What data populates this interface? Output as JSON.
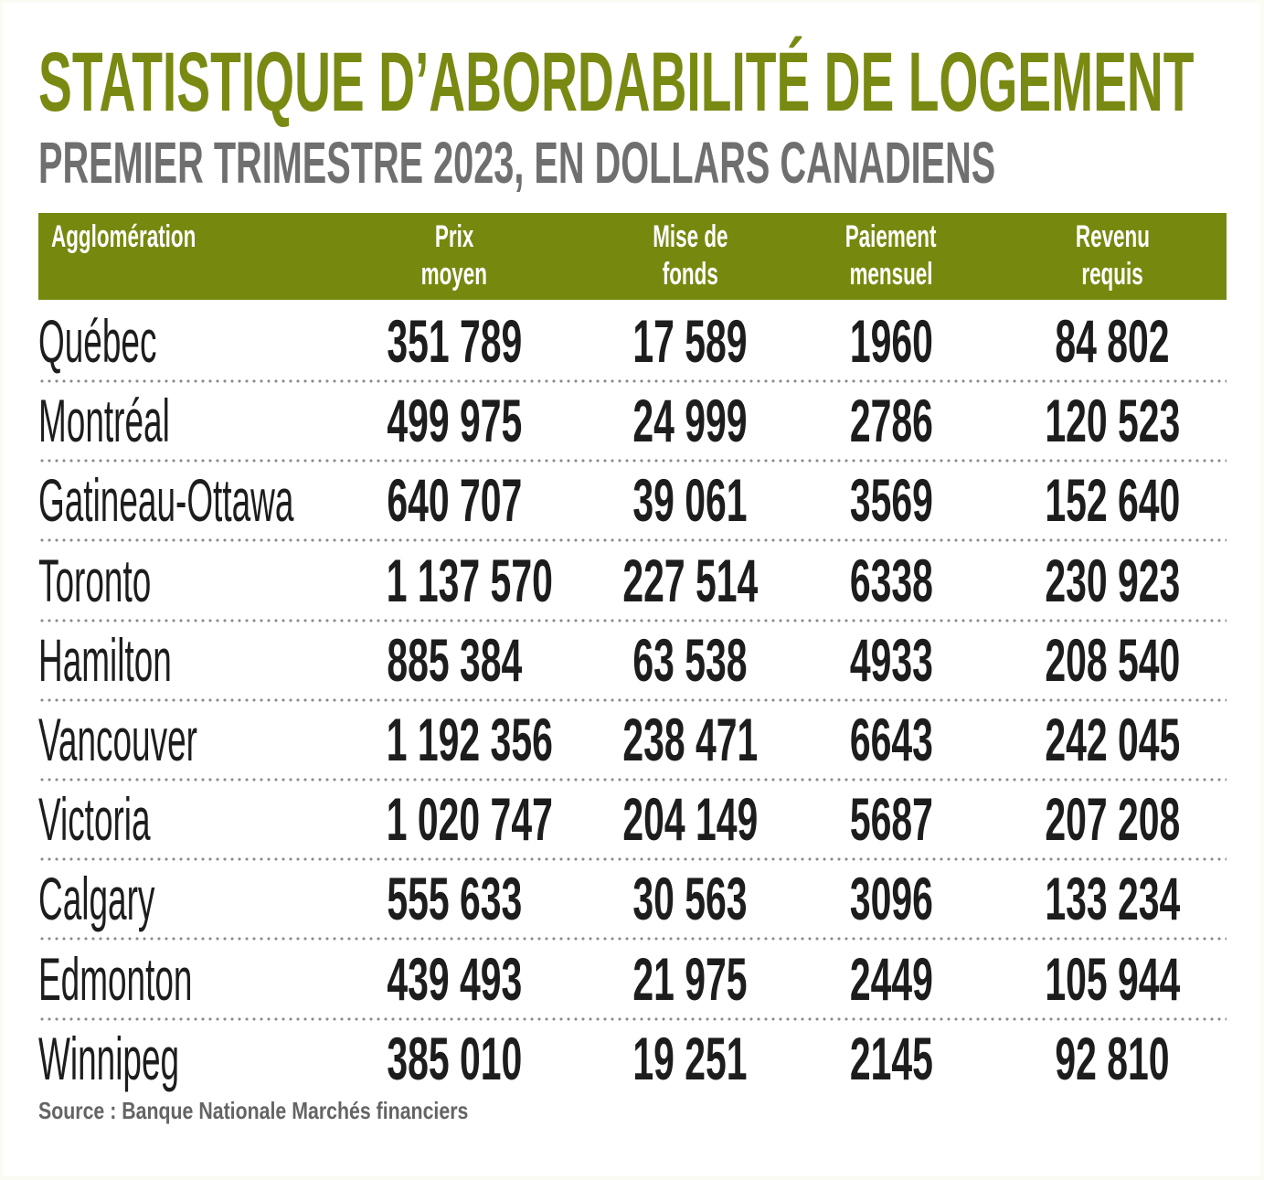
{
  "header": {
    "title": "STATISTIQUE D’ABORDABILITÉ DE LOGEMENT",
    "subtitle": "PREMIER TRIMESTRE 2023, EN DOLLARS CANADIENS"
  },
  "table": {
    "columns": [
      {
        "line1": "Agglomération",
        "line2": ""
      },
      {
        "line1": "Prix",
        "line2": "moyen"
      },
      {
        "line1": "Mise de",
        "line2": "fonds"
      },
      {
        "line1": "Paiement",
        "line2": "mensuel"
      },
      {
        "line1": "Revenu",
        "line2": "requis"
      }
    ],
    "rows": [
      {
        "city": "Québec",
        "prix": "351 789",
        "mise": "17 589",
        "paiement": "1960",
        "revenu": "84 802"
      },
      {
        "city": "Montréal",
        "prix": "499 975",
        "mise": "24 999",
        "paiement": "2786",
        "revenu": "120 523"
      },
      {
        "city": "Gatineau-Ottawa",
        "prix": "640 707",
        "mise": "39 061",
        "paiement": "3569",
        "revenu": "152 640"
      },
      {
        "city": "Toronto",
        "prix": "1 137 570",
        "mise": "227 514",
        "paiement": "6338",
        "revenu": "230 923"
      },
      {
        "city": "Hamilton",
        "prix": "885 384",
        "mise": "63 538",
        "paiement": "4933",
        "revenu": "208 540"
      },
      {
        "city": "Vancouver",
        "prix": "1 192 356",
        "mise": "238 471",
        "paiement": "6643",
        "revenu": "242 045"
      },
      {
        "city": "Victoria",
        "prix": "1 020 747",
        "mise": "204 149",
        "paiement": "5687",
        "revenu": "207 208"
      },
      {
        "city": "Calgary",
        "prix": "555 633",
        "mise": "30 563",
        "paiement": "3096",
        "revenu": "133 234"
      },
      {
        "city": "Edmonton",
        "prix": "439 493",
        "mise": "21 975",
        "paiement": "2449",
        "revenu": "105 944"
      },
      {
        "city": "Winnipeg",
        "prix": "385 010",
        "mise": "19 251",
        "paiement": "2145",
        "revenu": "92 810"
      }
    ]
  },
  "footer": {
    "source": "Source : Banque Nationale Marchés financiers"
  },
  "colors": {
    "title": "#7a8912",
    "header_bg": "#77880f",
    "subtitle": "#6f6f6f",
    "body_text": "#1d1d1d",
    "divider": "#8a8a8a"
  },
  "chart_data": {
    "type": "table",
    "title": "STATISTIQUE D’ABORDABILITÉ DE LOGEMENT",
    "subtitle": "PREMIER TRIMESTRE 2023, EN DOLLARS CANADIENS",
    "columns": [
      "Agglomération",
      "Prix moyen",
      "Mise de fonds",
      "Paiement mensuel",
      "Revenu requis"
    ],
    "categories": [
      "Québec",
      "Montréal",
      "Gatineau-Ottawa",
      "Toronto",
      "Hamilton",
      "Vancouver",
      "Victoria",
      "Calgary",
      "Edmonton",
      "Winnipeg"
    ],
    "series": [
      {
        "name": "Prix moyen",
        "values": [
          351789,
          499975,
          640707,
          1137570,
          885384,
          1192356,
          1020747,
          555633,
          439493,
          385010
        ]
      },
      {
        "name": "Mise de fonds",
        "values": [
          17589,
          24999,
          39061,
          227514,
          63538,
          238471,
          204149,
          30563,
          21975,
          19251
        ]
      },
      {
        "name": "Paiement mensuel",
        "values": [
          1960,
          2786,
          3569,
          6338,
          4933,
          6643,
          5687,
          3096,
          2449,
          2145
        ]
      },
      {
        "name": "Revenu requis",
        "values": [
          84802,
          120523,
          152640,
          230923,
          208540,
          242045,
          207208,
          133234,
          105944,
          92810
        ]
      }
    ],
    "source": "Source : Banque Nationale Marchés financiers"
  }
}
